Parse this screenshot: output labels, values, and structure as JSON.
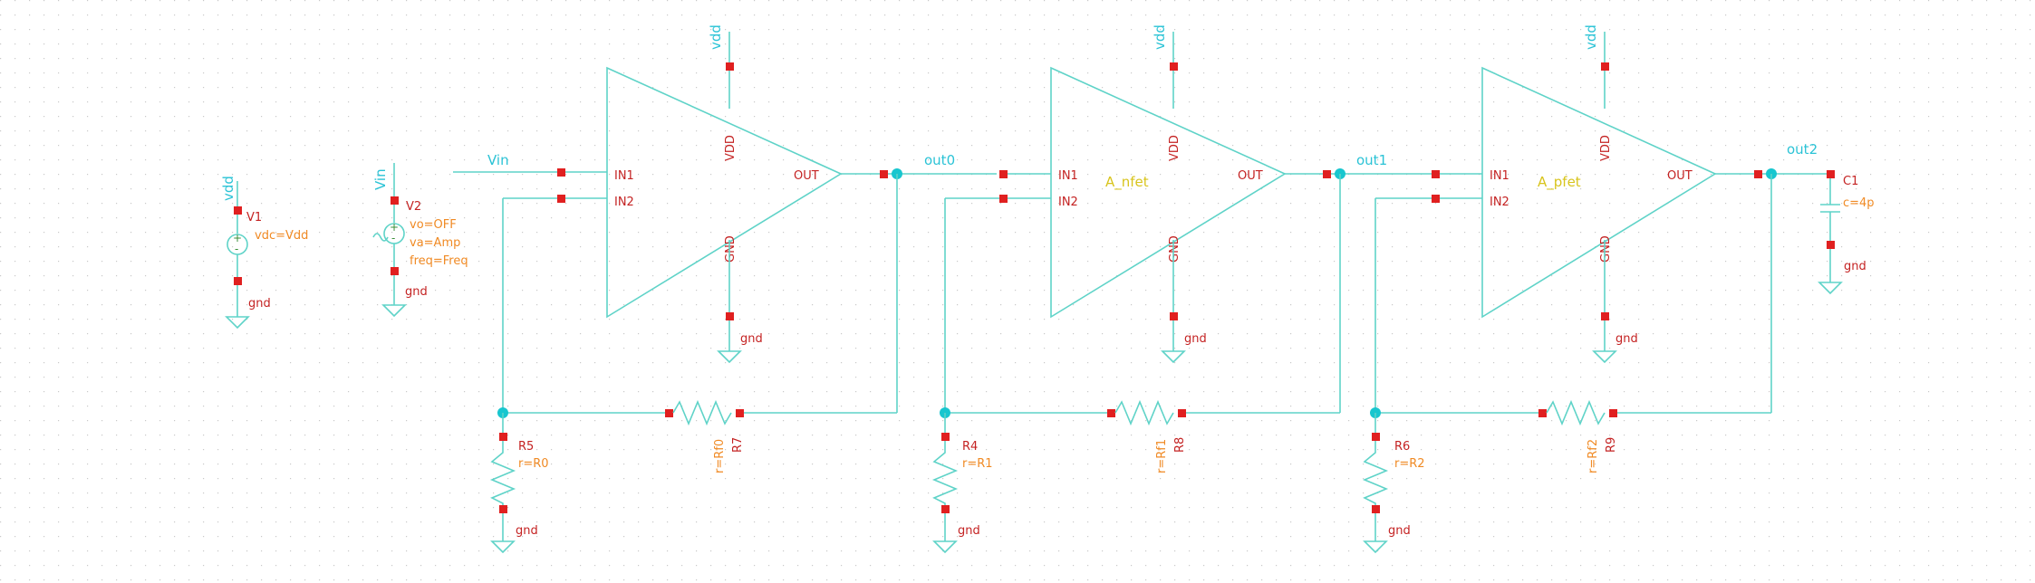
{
  "sources": {
    "v1": {
      "name": "V1",
      "param": "vdc=Vdd",
      "top_net": "vdd",
      "bottom_net": "gnd"
    },
    "v2": {
      "name": "V2",
      "params": [
        "vo=OFF",
        "va=Amp",
        "freq=Freq"
      ],
      "top_net": "Vin",
      "bottom_net": "gnd"
    }
  },
  "nets": {
    "vin": "Vin",
    "out0": "out0",
    "out1": "out1",
    "out2": "out2",
    "vdd": "vdd",
    "gnd": "gnd"
  },
  "pins": {
    "in1": "IN1",
    "in2": "IN2",
    "out": "OUT",
    "vdd": "VDD",
    "gnd": "GND"
  },
  "stages": [
    {
      "cell": "",
      "rf_name": "R7",
      "rf_value": "r=Rf0",
      "rg_name": "R5",
      "rg_value": "r=R0"
    },
    {
      "cell": "A_nfet",
      "rf_name": "R8",
      "rf_value": "r=Rf1",
      "rg_name": "R4",
      "rg_value": "r=R1"
    },
    {
      "cell": "A_pfet",
      "rf_name": "R9",
      "rf_value": "r=Rf2",
      "rg_name": "R6",
      "rg_value": "r=R2"
    }
  ],
  "cap": {
    "name": "C1",
    "value": "c=4p",
    "bottom_net": "gnd"
  }
}
